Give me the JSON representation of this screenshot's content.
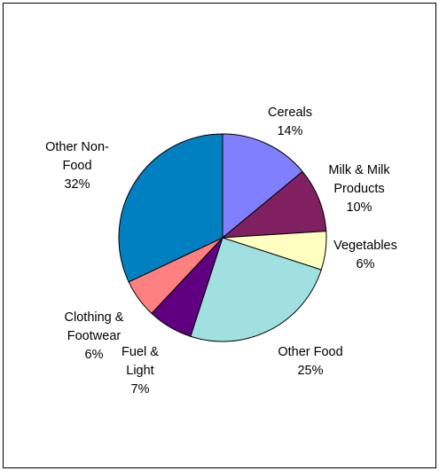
{
  "chart_data": {
    "type": "pie",
    "title": "",
    "legend": "none",
    "start_angle_deg": 0,
    "direction": "clockwise",
    "slices": [
      {
        "label_lines": [
          "Cereals"
        ],
        "value": 14,
        "value_label": "14%",
        "color": "#8080FF"
      },
      {
        "label_lines": [
          "Milk & Milk",
          "Products"
        ],
        "value": 10,
        "value_label": "10%",
        "color": "#802060"
      },
      {
        "label_lines": [
          "Vegetables"
        ],
        "value": 6,
        "value_label": "6%",
        "color": "#FFFFC0"
      },
      {
        "label_lines": [
          "Other Food"
        ],
        "value": 25,
        "value_label": "25%",
        "color": "#A0E0E0"
      },
      {
        "label_lines": [
          "Fuel &",
          "Light"
        ],
        "value": 7,
        "value_label": "7%",
        "color": "#600080"
      },
      {
        "label_lines": [
          "Clothing &",
          "Footwear"
        ],
        "value": 6,
        "value_label": "6%",
        "color": "#FF8080"
      },
      {
        "label_lines": [
          "Other Non-",
          "Food"
        ],
        "value": 32,
        "value_label": "32%",
        "color": "#0080C0"
      }
    ]
  }
}
